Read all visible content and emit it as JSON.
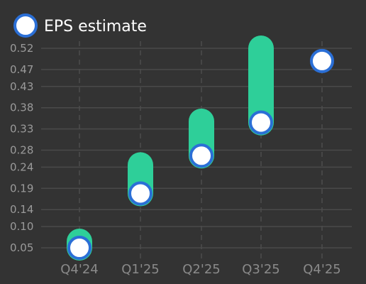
{
  "chart_data": {
    "type": "bar",
    "categories": [
      "Q4'24",
      "Q1'25",
      "Q2'25",
      "Q3'25",
      "Q4'25"
    ],
    "y_ticks": [
      "0.05",
      "0.10",
      "0.14",
      "0.19",
      "0.24",
      "0.28",
      "0.33",
      "0.38",
      "0.43",
      "0.47",
      "0.52"
    ],
    "ylim": [
      0.045,
      0.53
    ],
    "ranges": [
      {
        "low": 0.05,
        "high": 0.065
      },
      {
        "low": 0.178,
        "high": 0.245
      },
      {
        "low": 0.267,
        "high": 0.348
      },
      {
        "low": 0.345,
        "high": 0.52
      },
      null
    ],
    "series": [
      {
        "name": "EPS estimate",
        "values": [
          0.05,
          0.178,
          0.267,
          0.345,
          0.49
        ]
      }
    ],
    "legend": {
      "label": "EPS estimate",
      "position": "top-left"
    },
    "colors": {
      "background": "#333333",
      "bar": "#2ecf99",
      "marker_fill": "#ffffff",
      "marker_stroke": "#2b6fd6"
    },
    "grid": true
  }
}
